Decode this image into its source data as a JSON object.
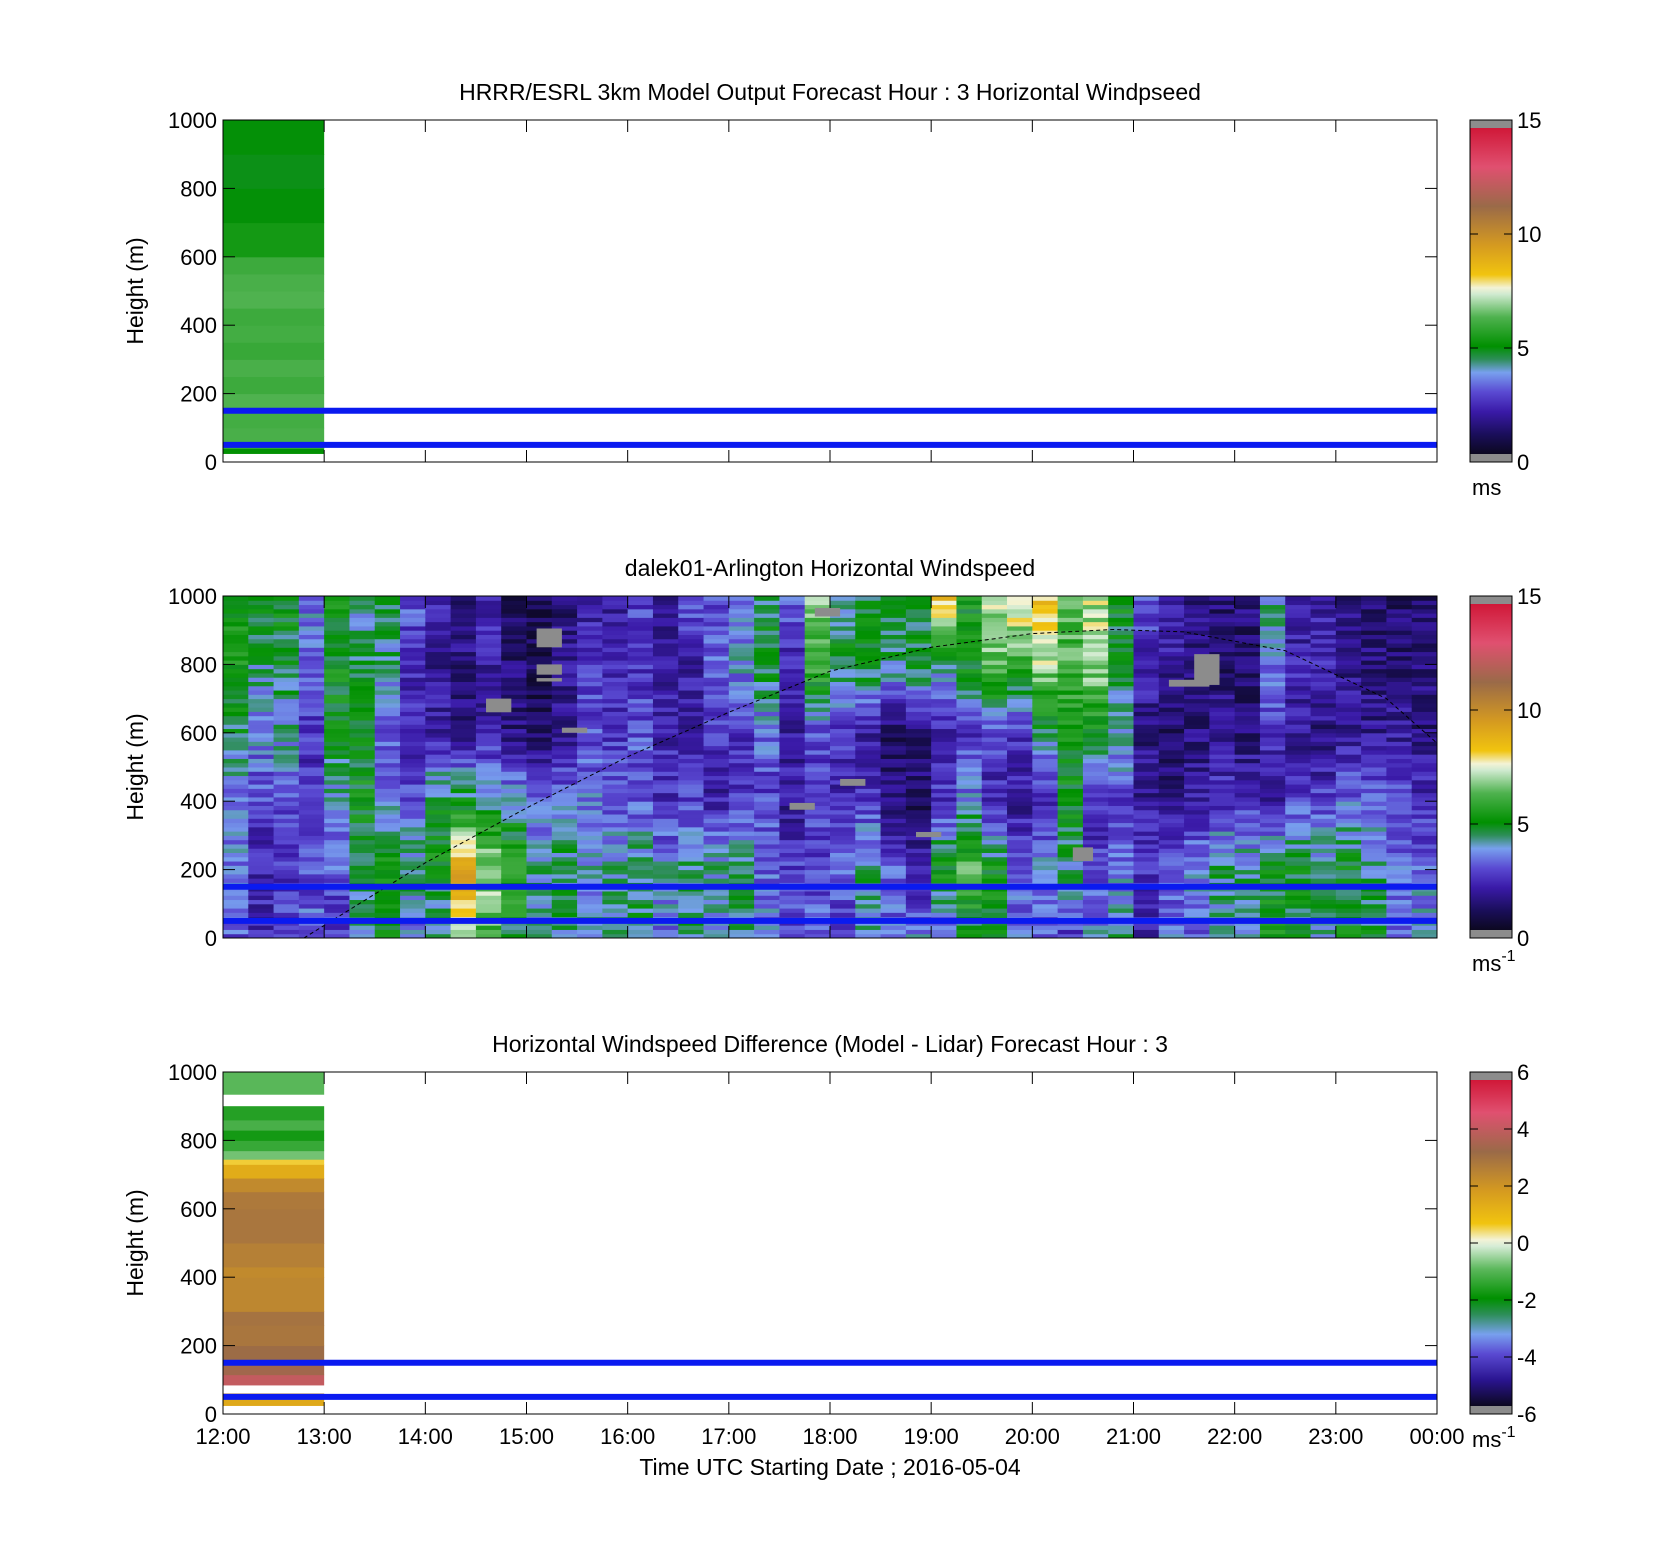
{
  "figure": {
    "xlabel": "Time UTC  Starting Date ; 2016-05-04",
    "xticks": [
      "12:00",
      "13:00",
      "14:00",
      "15:00",
      "16:00",
      "17:00",
      "18:00",
      "19:00",
      "20:00",
      "21:00",
      "22:00",
      "23:00",
      "00:00"
    ],
    "reference_lines_m": [
      50,
      150
    ]
  },
  "chart_data": [
    {
      "type": "heatmap",
      "title": "HRRR/ESRL 3km Model Output   Forecast Hour : 3 Horizontal Windpseed",
      "ylabel": "Height (m)",
      "xlabel": "",
      "ylim": [
        0,
        1000
      ],
      "yticks": [
        "0",
        "200",
        "400",
        "600",
        "800",
        "1000"
      ],
      "xlim_hours": [
        0,
        12
      ],
      "colorbar": {
        "ticks": [
          "0",
          "5",
          "10",
          "15"
        ],
        "range": [
          0,
          15
        ],
        "unit_base": "ms",
        "unit_exp": ""
      },
      "columns": [
        {
          "t0": 0,
          "t1": 1,
          "values": [
            [
              25,
              40,
              5.0
            ],
            [
              40,
              60,
              6.0
            ],
            [
              60,
              100,
              6.2
            ],
            [
              100,
              150,
              6.1
            ],
            [
              150,
              200,
              6.3
            ],
            [
              200,
              250,
              6.0
            ],
            [
              250,
              300,
              6.2
            ],
            [
              300,
              350,
              5.9
            ],
            [
              350,
              400,
              6.1
            ],
            [
              400,
              450,
              6.0
            ],
            [
              450,
              500,
              6.3
            ],
            [
              500,
              550,
              6.2
            ],
            [
              550,
              600,
              6.0
            ],
            [
              600,
              700,
              5.3
            ],
            [
              700,
              800,
              4.9
            ],
            [
              800,
              900,
              4.8
            ],
            [
              900,
              1000,
              4.9
            ]
          ]
        }
      ]
    },
    {
      "type": "heatmap",
      "title": "dalek01-Arlington  Horizontal Windspeed",
      "ylabel": "Height (m)",
      "xlabel": "",
      "ylim": [
        0,
        1000
      ],
      "yticks": [
        "0",
        "200",
        "400",
        "600",
        "800",
        "1000"
      ],
      "xlim_hours": [
        0,
        12
      ],
      "data_extent_hours": [
        0,
        11.83
      ],
      "colorbar": {
        "ticks": [
          "0",
          "5",
          "10",
          "15"
        ],
        "range": [
          0,
          15
        ],
        "unit_base": "ms",
        "unit_exp": "-1"
      },
      "column_profiles": {
        "t_start": 0,
        "dt": 0.25,
        "bottom_m": 0,
        "top_m": 1000,
        "levels_m": [
          0,
          200,
          400,
          600,
          800,
          1000
        ],
        "profiles": [
          [
            3.0,
            3.5,
            3.2,
            4.5,
            5.2,
            5.0
          ],
          [
            2.2,
            2.0,
            2.8,
            3.5,
            4.2,
            4.8
          ],
          [
            2.6,
            2.3,
            3.0,
            4.0,
            4.4,
            5.0
          ],
          [
            3.2,
            2.8,
            2.2,
            2.4,
            3.0,
            3.6
          ],
          [
            2.4,
            3.0,
            3.8,
            4.8,
            5.0,
            5.2
          ],
          [
            3.5,
            4.8,
            5.0,
            4.8,
            4.4,
            4.0
          ],
          [
            4.8,
            5.2,
            3.5,
            3.0,
            4.0,
            4.6
          ],
          [
            3.2,
            4.4,
            3.0,
            2.0,
            2.4,
            3.0
          ],
          [
            3.8,
            5.0,
            4.6,
            2.0,
            1.8,
            2.2
          ],
          [
            6.8,
            9.2,
            4.8,
            1.6,
            1.4,
            1.6
          ],
          [
            6.0,
            7.2,
            4.2,
            2.0,
            2.0,
            2.4
          ],
          [
            4.6,
            6.0,
            4.0,
            1.4,
            1.2,
            1.0
          ],
          [
            3.8,
            4.2,
            3.0,
            1.0,
            0.8,
            0.6
          ],
          [
            4.2,
            4.6,
            3.2,
            1.8,
            1.6,
            1.2
          ],
          [
            3.6,
            3.8,
            3.4,
            2.8,
            2.4,
            1.8
          ],
          [
            3.8,
            4.2,
            3.0,
            2.4,
            2.2,
            1.6
          ],
          [
            4.4,
            4.6,
            2.8,
            3.0,
            2.4,
            2.6
          ],
          [
            3.2,
            3.8,
            2.2,
            2.2,
            2.0,
            1.8
          ],
          [
            4.2,
            4.4,
            2.6,
            2.0,
            1.8,
            3.4
          ],
          [
            3.6,
            4.0,
            2.0,
            2.6,
            3.0,
            2.6
          ],
          [
            4.0,
            4.6,
            2.4,
            2.4,
            3.6,
            3.2
          ],
          [
            3.4,
            3.2,
            2.6,
            3.2,
            4.8,
            4.4
          ],
          [
            2.8,
            2.6,
            1.8,
            2.0,
            2.2,
            3.0
          ],
          [
            3.0,
            2.8,
            2.4,
            2.8,
            6.2,
            6.6
          ],
          [
            2.2,
            3.4,
            2.0,
            2.4,
            4.8,
            4.2
          ],
          [
            3.8,
            4.2,
            2.6,
            1.8,
            5.0,
            4.6
          ],
          [
            3.2,
            3.0,
            1.2,
            1.0,
            4.2,
            4.8
          ],
          [
            3.6,
            2.0,
            1.0,
            1.4,
            4.6,
            4.8
          ],
          [
            3.0,
            5.2,
            2.4,
            2.0,
            4.0,
            8.6
          ],
          [
            4.4,
            6.2,
            3.6,
            2.4,
            5.0,
            5.2
          ],
          [
            4.8,
            5.0,
            2.0,
            3.0,
            6.4,
            7.2
          ],
          [
            3.6,
            2.8,
            1.8,
            2.4,
            6.0,
            8.0
          ],
          [
            3.2,
            3.6,
            2.2,
            4.2,
            7.0,
            8.4
          ],
          [
            2.6,
            4.2,
            5.0,
            5.2,
            6.0,
            6.4
          ],
          [
            3.8,
            2.6,
            2.2,
            4.8,
            7.0,
            7.2
          ],
          [
            4.4,
            3.2,
            2.6,
            4.2,
            4.4,
            5.0
          ],
          [
            2.2,
            2.4,
            1.8,
            1.4,
            2.2,
            3.0
          ],
          [
            3.6,
            2.8,
            1.6,
            1.0,
            1.8,
            2.0
          ],
          [
            3.0,
            3.8,
            2.0,
            1.4,
            1.2,
            1.6
          ],
          [
            3.8,
            4.4,
            2.4,
            1.8,
            1.2,
            1.2
          ],
          [
            4.0,
            4.2,
            2.6,
            1.2,
            1.0,
            1.4
          ],
          [
            5.2,
            4.6,
            2.0,
            2.4,
            3.4,
            4.2
          ],
          [
            4.6,
            4.8,
            2.8,
            1.6,
            2.2,
            1.6
          ],
          [
            4.2,
            4.4,
            2.6,
            1.4,
            2.2,
            1.8
          ],
          [
            5.0,
            4.8,
            3.2,
            1.8,
            1.6,
            1.4
          ],
          [
            4.6,
            4.2,
            3.0,
            1.6,
            1.4,
            1.2
          ],
          [
            3.2,
            3.4,
            2.8,
            1.8,
            1.2,
            1.0
          ],
          [
            3.8,
            3.2,
            2.4,
            1.4,
            1.2,
            1.0
          ]
        ]
      },
      "missing_patches": [
        {
          "t0": 3.1,
          "t1": 3.35,
          "z0": 770,
          "z1": 800
        },
        {
          "t0": 2.6,
          "t1": 2.85,
          "z0": 660,
          "z1": 700
        },
        {
          "t0": 3.1,
          "t1": 3.35,
          "z0": 750,
          "z1": 760
        },
        {
          "t0": 3.35,
          "t1": 3.6,
          "z0": 600,
          "z1": 615
        },
        {
          "t0": 3.1,
          "t1": 3.35,
          "z0": 850,
          "z1": 905
        },
        {
          "t0": 6.1,
          "t1": 6.35,
          "z0": 445,
          "z1": 465
        },
        {
          "t0": 5.6,
          "t1": 5.85,
          "z0": 375,
          "z1": 395
        },
        {
          "t0": 6.85,
          "t1": 7.1,
          "z0": 295,
          "z1": 310
        },
        {
          "t0": 8.4,
          "t1": 8.6,
          "z0": 225,
          "z1": 265
        },
        {
          "t0": 9.35,
          "t1": 9.75,
          "z0": 735,
          "z1": 755
        },
        {
          "t0": 9.6,
          "t1": 9.85,
          "z0": 740,
          "z1": 830
        },
        {
          "t0": 5.85,
          "t1": 6.1,
          "z0": 940,
          "z1": 965
        }
      ],
      "sun_curve": {
        "style": "dashed",
        "points": [
          [
            0.8,
            0
          ],
          [
            2,
            220
          ],
          [
            3,
            380
          ],
          [
            4,
            530
          ],
          [
            5,
            660
          ],
          [
            6,
            780
          ],
          [
            7,
            850
          ],
          [
            8,
            890
          ],
          [
            8.8,
            902
          ],
          [
            9.5,
            895
          ],
          [
            10.5,
            840
          ],
          [
            11.5,
            700
          ],
          [
            12,
            570
          ]
        ]
      }
    },
    {
      "type": "heatmap",
      "title": "Horizontal Windspeed Difference (Model - Lidar) Forecast Hour : 3",
      "ylabel": "Height (m)",
      "xlabel": "Time UTC  Starting Date ; 2016-05-04",
      "ylim": [
        0,
        1000
      ],
      "yticks": [
        "0",
        "200",
        "400",
        "600",
        "800",
        "1000"
      ],
      "xlim_hours": [
        0,
        12
      ],
      "colorbar": {
        "ticks": [
          "-6",
          "-4",
          "-2",
          "0",
          "2",
          "4",
          "6"
        ],
        "range": [
          -6,
          6
        ],
        "unit_base": "ms",
        "unit_exp": "-1"
      },
      "columns": [
        {
          "t0": 0,
          "t1": 1,
          "values": [
            [
              25,
              45,
              1.5
            ],
            [
              45,
              60,
              2.5
            ],
            [
              85,
              115,
              4.2
            ],
            [
              115,
              150,
              3.5
            ],
            [
              150,
              200,
              3.3
            ],
            [
              200,
              260,
              3.0
            ],
            [
              260,
              300,
              3.1
            ],
            [
              300,
              400,
              2.5
            ],
            [
              400,
              430,
              2.4
            ],
            [
              430,
              500,
              2.7
            ],
            [
              500,
              600,
              3.0
            ],
            [
              600,
              650,
              2.9
            ],
            [
              650,
              690,
              2.4
            ],
            [
              690,
              730,
              1.4
            ],
            [
              730,
              745,
              0.6
            ],
            [
              745,
              770,
              -0.8
            ],
            [
              770,
              800,
              -1.4
            ],
            [
              800,
              830,
              -1.8
            ],
            [
              830,
              860,
              -1.2
            ],
            [
              860,
              900,
              -1.6
            ],
            [
              935,
              1000,
              -1.0
            ]
          ]
        }
      ]
    }
  ]
}
